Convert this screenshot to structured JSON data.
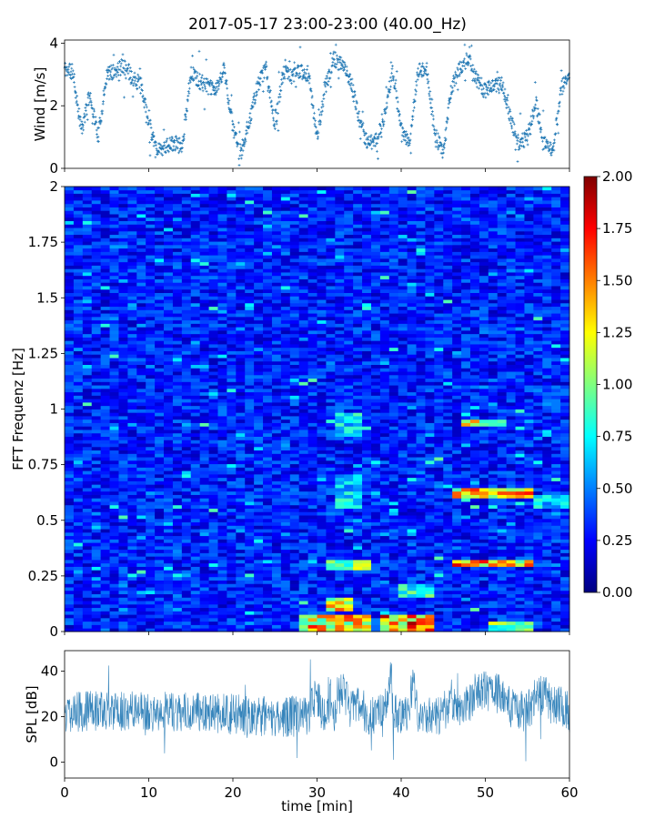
{
  "title": "2017-05-17 23:00-23:00 (40.00_Hz)",
  "colors": {
    "series": "#1f77b4",
    "jet": [
      "#00007f",
      "#0000ff",
      "#007fff",
      "#00ffff",
      "#7fff7f",
      "#ffff00",
      "#ff7f00",
      "#ff0000",
      "#7f0000"
    ]
  },
  "chart_data": [
    {
      "type": "scatter",
      "panel": "wind",
      "ylabel": "Wind [m/s]",
      "xlim": [
        0,
        60
      ],
      "ylim": [
        0,
        4.1
      ],
      "yticks": [
        0,
        2,
        4
      ],
      "yticklabels": [
        "0",
        "2",
        "4"
      ],
      "marker": "+",
      "points_per_minute": 25,
      "noise": 0.25,
      "profile": [
        [
          0,
          3.2
        ],
        [
          1,
          3.0
        ],
        [
          2,
          1.2
        ],
        [
          3,
          2.4
        ],
        [
          4,
          1.0
        ],
        [
          5,
          3.0
        ],
        [
          6,
          3.1
        ],
        [
          7,
          3.3
        ],
        [
          8,
          2.9
        ],
        [
          9,
          2.7
        ],
        [
          10,
          1.5
        ],
        [
          11,
          0.6
        ],
        [
          12,
          0.7
        ],
        [
          13,
          0.8
        ],
        [
          14,
          0.7
        ],
        [
          15,
          3.1
        ],
        [
          16,
          2.8
        ],
        [
          17,
          2.6
        ],
        [
          18,
          2.5
        ],
        [
          19,
          3.2
        ],
        [
          20,
          1.2
        ],
        [
          21,
          0.5
        ],
        [
          22,
          1.6
        ],
        [
          23,
          2.7
        ],
        [
          24,
          3.2
        ],
        [
          25,
          1.3
        ],
        [
          26,
          3.1
        ],
        [
          27,
          2.9
        ],
        [
          28,
          3.1
        ],
        [
          29,
          3.0
        ],
        [
          30,
          1.0
        ],
        [
          31,
          2.6
        ],
        [
          32,
          3.5
        ],
        [
          33,
          3.3
        ],
        [
          34,
          2.8
        ],
        [
          35,
          1.6
        ],
        [
          36,
          0.8
        ],
        [
          37,
          0.9
        ],
        [
          38,
          1.7
        ],
        [
          39,
          3.1
        ],
        [
          40,
          1.2
        ],
        [
          41,
          0.8
        ],
        [
          42,
          3.1
        ],
        [
          43,
          3.2
        ],
        [
          44,
          1.1
        ],
        [
          45,
          0.5
        ],
        [
          46,
          2.6
        ],
        [
          47,
          3.2
        ],
        [
          48,
          3.5
        ],
        [
          49,
          2.8
        ],
        [
          50,
          2.5
        ],
        [
          51,
          2.6
        ],
        [
          52,
          2.7
        ],
        [
          53,
          1.6
        ],
        [
          54,
          0.8
        ],
        [
          55,
          1.0
        ],
        [
          56,
          2.1
        ],
        [
          57,
          0.8
        ],
        [
          58,
          0.5
        ],
        [
          59,
          2.5
        ],
        [
          60,
          3.1
        ]
      ]
    },
    {
      "type": "heatmap",
      "panel": "spectrogram",
      "ylabel": "FFT Frequenz [Hz]",
      "xlim": [
        0,
        60
      ],
      "ylim": [
        0,
        2
      ],
      "yticks": [
        0,
        0.25,
        0.5,
        0.75,
        1,
        1.25,
        1.5,
        1.75,
        2
      ],
      "yticklabels": [
        "0",
        "0.25",
        "0.5",
        "0.75",
        "1",
        "1.25",
        "1.5",
        "1.75",
        "2"
      ],
      "colormap": "jet",
      "clim": [
        0,
        2
      ],
      "time_bins": 56,
      "freq_bins": 130,
      "background_level": 0.3,
      "hot_regions": [
        {
          "t": [
            28,
            36
          ],
          "f": [
            0,
            0.08
          ],
          "level": 1.5
        },
        {
          "t": [
            31,
            34
          ],
          "f": [
            0.1,
            0.16
          ],
          "level": 1.4
        },
        {
          "t": [
            31,
            36
          ],
          "f": [
            0.28,
            0.32
          ],
          "level": 1.1
        },
        {
          "t": [
            32,
            35
          ],
          "f": [
            0.55,
            0.7
          ],
          "level": 0.8
        },
        {
          "t": [
            32,
            35
          ],
          "f": [
            0.88,
            0.98
          ],
          "level": 0.8
        },
        {
          "t": [
            38,
            44
          ],
          "f": [
            0,
            0.07
          ],
          "level": 1.7
        },
        {
          "t": [
            40,
            44
          ],
          "f": [
            0.15,
            0.22
          ],
          "level": 0.9
        },
        {
          "t": [
            46,
            56
          ],
          "f": [
            0.29,
            0.32
          ],
          "level": 1.6
        },
        {
          "t": [
            46,
            56
          ],
          "f": [
            0.6,
            0.64
          ],
          "level": 1.5
        },
        {
          "t": [
            47,
            53
          ],
          "f": [
            0.93,
            0.96
          ],
          "level": 1.5
        },
        {
          "t": [
            56,
            60
          ],
          "f": [
            0.55,
            0.62
          ],
          "level": 0.8
        },
        {
          "t": [
            50,
            56
          ],
          "f": [
            0,
            0.05
          ],
          "level": 1.1
        }
      ]
    },
    {
      "type": "colorbar",
      "panel": "colorbar",
      "clim": [
        0,
        2
      ],
      "ticks": [
        0,
        0.25,
        0.5,
        0.75,
        1,
        1.25,
        1.5,
        1.75,
        2
      ],
      "ticklabels": [
        "0.00",
        "0.25",
        "0.50",
        "0.75",
        "1.00",
        "1.25",
        "1.50",
        "1.75",
        "2.00"
      ]
    },
    {
      "type": "line",
      "panel": "spl",
      "ylabel": "SPL [dB]",
      "xlabel": "time [min]",
      "xlim": [
        0,
        60
      ],
      "ylim": [
        -7,
        49
      ],
      "yticks": [
        0,
        20,
        40
      ],
      "yticklabels": [
        "0",
        "20",
        "40"
      ],
      "xticks": [
        0,
        10,
        20,
        30,
        40,
        50,
        60
      ],
      "xticklabels": [
        "0",
        "10",
        "20",
        "30",
        "40",
        "50",
        "60"
      ],
      "samples": 1400,
      "noise": 9,
      "baseline": [
        [
          0,
          22
        ],
        [
          5,
          23
        ],
        [
          10,
          22
        ],
        [
          15,
          22
        ],
        [
          20,
          21
        ],
        [
          25,
          20
        ],
        [
          28,
          20
        ],
        [
          29,
          21
        ],
        [
          30,
          29
        ],
        [
          30.5,
          22
        ],
        [
          32,
          21
        ],
        [
          33,
          32
        ],
        [
          34,
          22
        ],
        [
          35,
          27
        ],
        [
          36,
          20
        ],
        [
          38,
          22
        ],
        [
          38.6,
          35
        ],
        [
          39,
          21
        ],
        [
          41,
          22
        ],
        [
          41.5,
          33
        ],
        [
          42,
          20
        ],
        [
          44,
          20
        ],
        [
          45,
          22
        ],
        [
          46,
          28
        ],
        [
          47,
          21
        ],
        [
          48,
          26
        ],
        [
          49,
          31
        ],
        [
          50,
          32
        ],
        [
          52,
          29
        ],
        [
          53,
          24
        ],
        [
          55,
          22
        ],
        [
          56,
          28
        ],
        [
          57,
          30
        ],
        [
          58,
          24
        ],
        [
          59,
          26
        ],
        [
          60,
          22
        ]
      ],
      "spikes": [
        [
          31.5,
          38
        ],
        [
          32.5,
          40
        ],
        [
          33.5,
          38
        ],
        [
          38.8,
          44
        ],
        [
          41.3,
          41
        ]
      ]
    }
  ]
}
